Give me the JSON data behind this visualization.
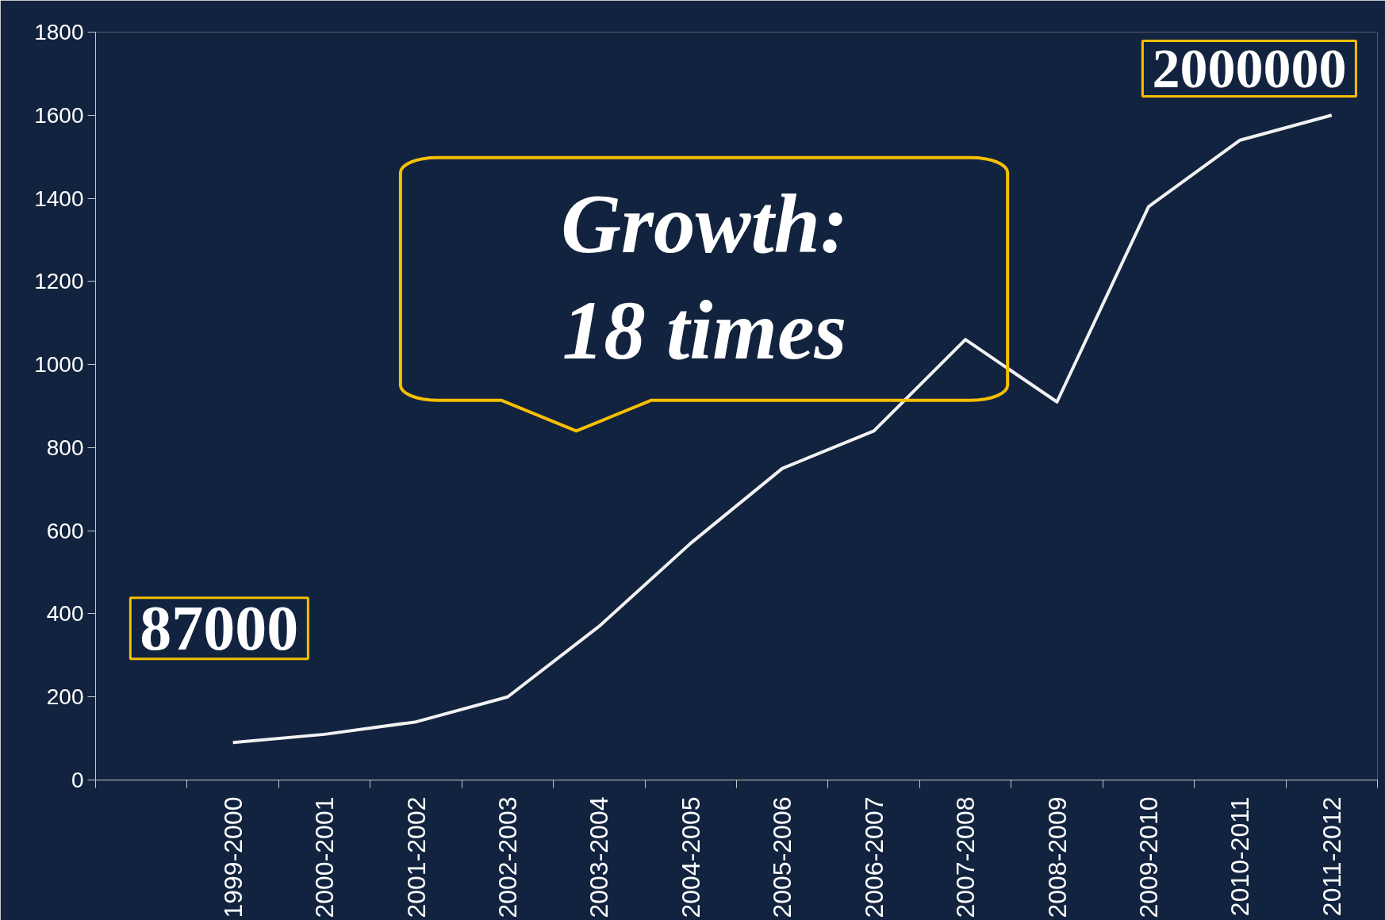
{
  "chart_data": {
    "type": "line",
    "categories": [
      null,
      "1999-2000",
      "2000-2001",
      "2001-2002",
      "2002-2003",
      "2003-2004",
      "2004-2005",
      "2005-2006",
      "2006-2007",
      "2007-2008",
      "2008-2009",
      "2009-2010",
      "2010-2011",
      "2011-2012"
    ],
    "series": [
      {
        "color": "#f2f2f2",
        "values": [
          null,
          90,
          110,
          140,
          200,
          370,
          570,
          750,
          840,
          1060,
          910,
          1380,
          1540,
          1600
        ]
      }
    ],
    "ylim": [
      0,
      1800
    ],
    "yticks": [
      0,
      200,
      400,
      600,
      800,
      1000,
      1200,
      1400,
      1600,
      1800
    ],
    "grid": false,
    "marker": "none",
    "line_style": "solid",
    "annotations": [
      "87000",
      "2000000",
      "Growth:\n18 times"
    ]
  }
}
